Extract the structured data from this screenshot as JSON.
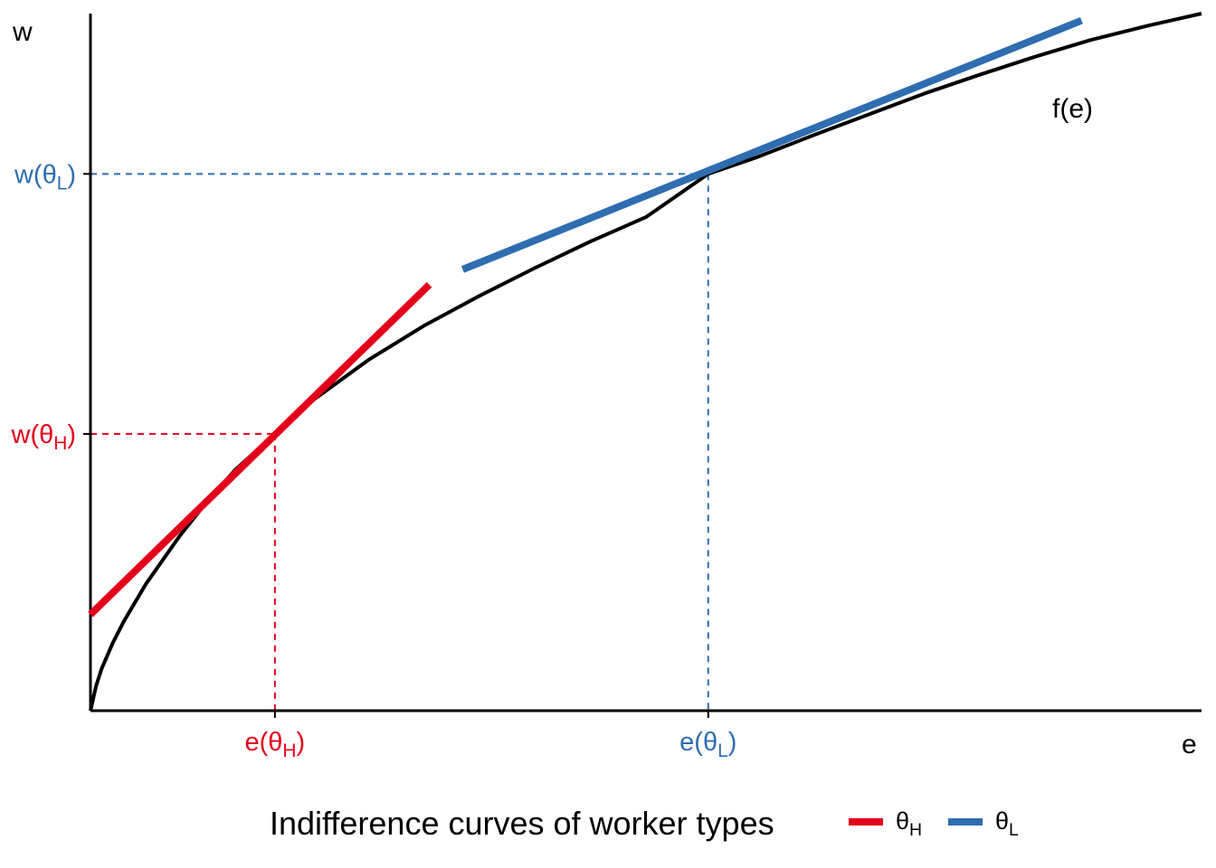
{
  "chart_data": {
    "type": "line",
    "title": "",
    "xlabel": "e",
    "ylabel": "w",
    "xlim": [
      0,
      100
    ],
    "ylim": [
      0,
      100
    ],
    "grid": false,
    "legend_position": "bottom",
    "legend": {
      "title": "Indifference curves of worker types",
      "entries": [
        {
          "base": "θ",
          "sub": "H",
          "color": "#E3001B"
        },
        {
          "base": "θ",
          "sub": "L",
          "color": "#2E6DB0"
        }
      ]
    },
    "curve": {
      "name": "f(e)",
      "label": "f(e)",
      "color": "#000000",
      "points": [
        [
          0,
          0
        ],
        [
          0.5,
          3.5
        ],
        [
          1,
          6.0
        ],
        [
          2,
          9.7
        ],
        [
          3,
          12.8
        ],
        [
          5,
          18.2
        ],
        [
          8,
          25.0
        ],
        [
          10,
          29.0
        ],
        [
          13,
          34.5
        ],
        [
          16.6,
          39.7
        ],
        [
          20,
          44.5
        ],
        [
          25,
          50.3
        ],
        [
          30,
          55.2
        ],
        [
          35,
          59.5
        ],
        [
          40,
          63.5
        ],
        [
          45,
          67.3
        ],
        [
          50,
          70.8
        ],
        [
          55.6,
          77.0
        ],
        [
          60,
          79.4
        ],
        [
          65,
          82.5
        ],
        [
          70,
          85.5
        ],
        [
          75,
          88.5
        ],
        [
          80,
          91.2
        ],
        [
          85,
          93.8
        ],
        [
          90,
          96.2
        ],
        [
          95,
          98.2
        ],
        [
          100,
          100
        ]
      ]
    },
    "series": [
      {
        "name": "θH",
        "color": "#E3001B",
        "points": [
          [
            0,
            13.8
          ],
          [
            30.5,
            61.1
          ]
        ]
      },
      {
        "name": "θL",
        "color": "#2E6DB0",
        "points": [
          [
            33.5,
            63.3
          ],
          [
            89.2,
            99.0
          ]
        ]
      }
    ],
    "reference_points": [
      {
        "e": 16.6,
        "w": 39.7,
        "color": "#E3001B",
        "x_tick": {
          "prefix": "e(",
          "base": "θ",
          "sub": "H",
          "suffix": ")"
        },
        "y_tick": {
          "prefix": "w(",
          "base": "θ",
          "sub": "H",
          "suffix": ")"
        }
      },
      {
        "e": 55.6,
        "w": 77.0,
        "color": "#2E6DB0",
        "x_tick": {
          "prefix": "e(",
          "base": "θ",
          "sub": "L",
          "suffix": ")"
        },
        "y_tick": {
          "prefix": "w(",
          "base": "θ",
          "sub": "L",
          "suffix": ")"
        }
      }
    ]
  }
}
